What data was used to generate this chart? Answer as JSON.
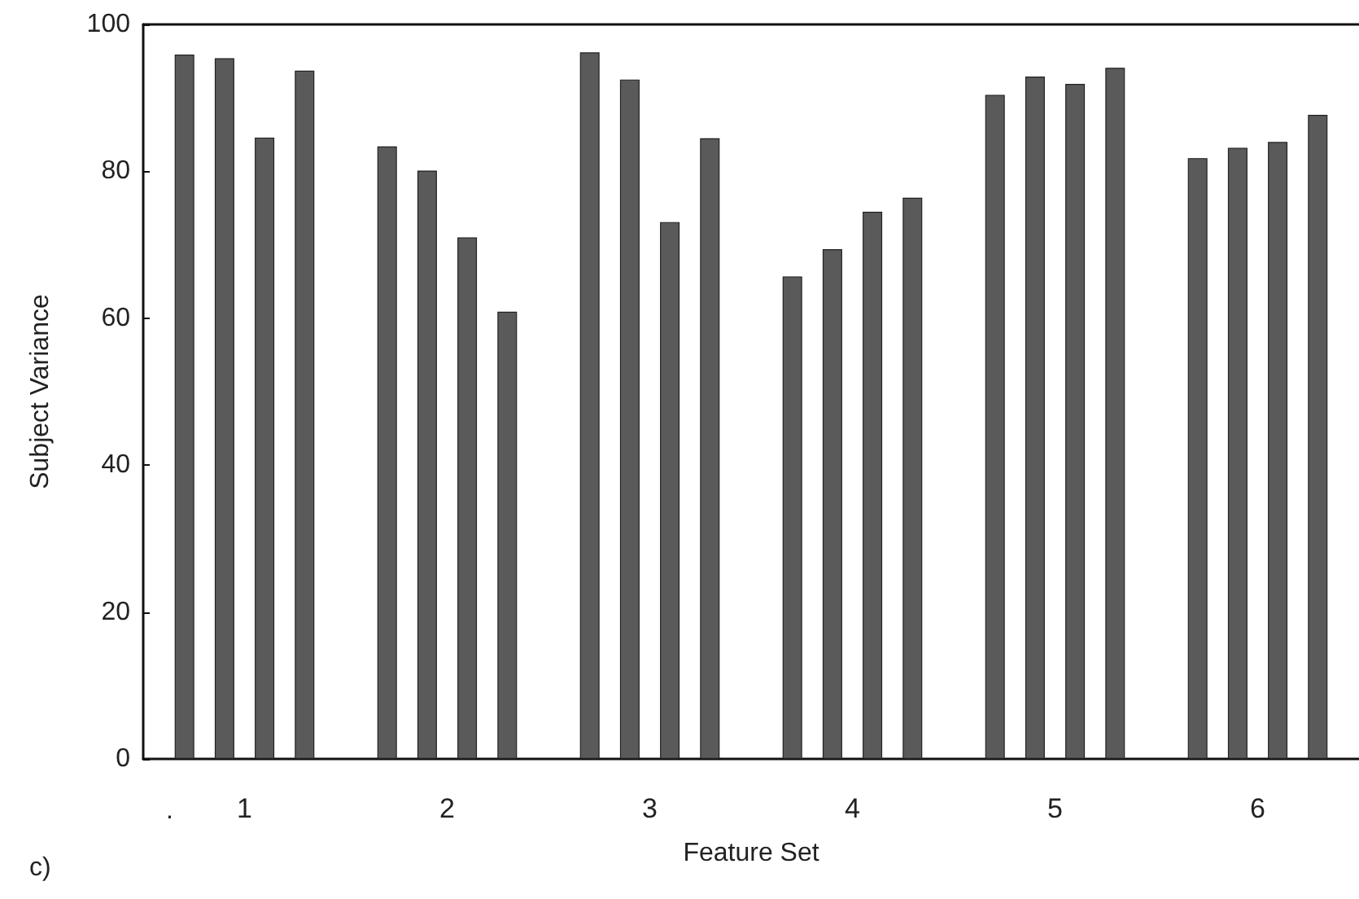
{
  "chart_data": {
    "type": "bar",
    "xlabel": "Feature Set",
    "ylabel": "Subject Variance",
    "categories": [
      "1",
      "2",
      "3",
      "4",
      "5",
      "6"
    ],
    "series": [
      {
        "color": "#5a5a5a",
        "values": [
          95.9,
          83.4,
          96.2,
          65.7,
          90.4,
          81.8
        ]
      },
      {
        "color": "#5a5a5a",
        "values": [
          95.4,
          80.1,
          92.5,
          69.4,
          92.9,
          83.2
        ]
      },
      {
        "color": "#5a5a5a",
        "values": [
          84.6,
          71.0,
          73.1,
          74.5,
          91.9,
          84.0
        ]
      },
      {
        "color": "#5a5a5a",
        "values": [
          93.7,
          60.9,
          84.5,
          76.4,
          94.1,
          87.7
        ]
      }
    ],
    "ylim": [
      0,
      100
    ],
    "yticks": [
      0,
      20,
      40,
      60,
      80,
      100
    ],
    "grid": false,
    "annotations": [
      ".",
      "c)"
    ]
  }
}
